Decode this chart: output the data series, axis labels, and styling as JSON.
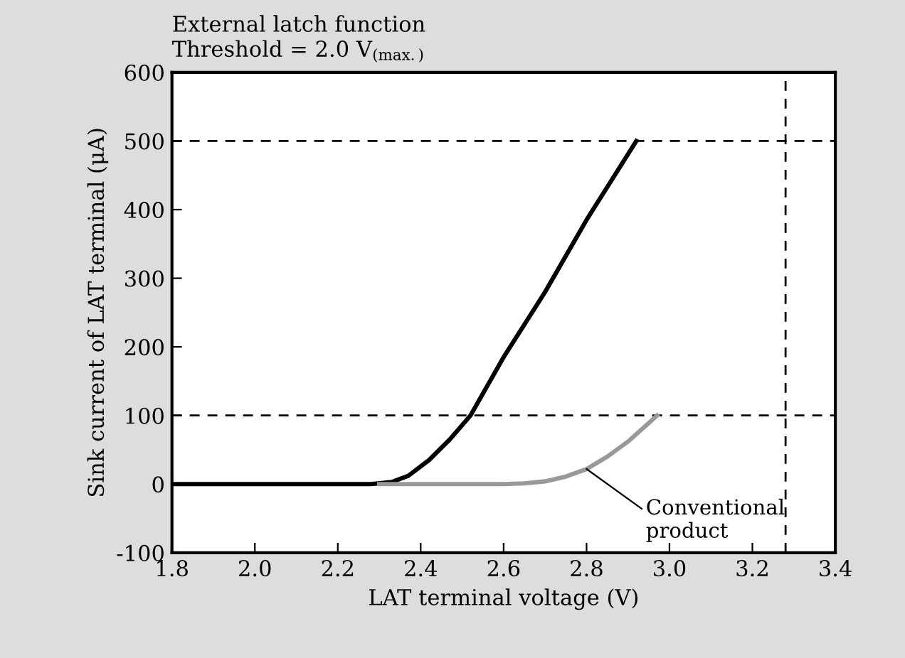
{
  "chart_data": {
    "type": "line",
    "title": "External latch function",
    "subtitle": "Threshold = 2.0 V$_{(max.)}$",
    "xlabel": "LAT terminal voltage (V)",
    "ylabel": "Sink current of LAT terminal (μA)",
    "series": [
      {
        "color": "#000000",
        "x": [
          1.8,
          2.0,
          2.2,
          2.28,
          2.33,
          2.37,
          2.42,
          2.47,
          2.52,
          2.6,
          2.7,
          2.8,
          2.92
        ],
        "values": [
          0,
          0,
          0,
          0,
          3,
          12,
          35,
          65,
          100,
          185,
          280,
          385,
          500
        ]
      },
      {
        "name": "Conventional\nproduct",
        "color": "#999999",
        "x": [
          2.3,
          2.5,
          2.6,
          2.65,
          2.7,
          2.75,
          2.8,
          2.85,
          2.9,
          2.97
        ],
        "values": [
          0,
          0,
          0,
          1,
          4,
          11,
          22,
          40,
          62,
          100
        ]
      }
    ],
    "xlim": [
      1.8,
      3.4
    ],
    "xticks": [
      1.8,
      {
        "value": 2.0,
        "label": "2.0"
      },
      2.2,
      2.4,
      2.6,
      2.8,
      {
        "value": 3.0,
        "label": "3.0"
      },
      3.2,
      3.4
    ],
    "ylim": [
      -100,
      600
    ],
    "yticks": [
      -100,
      0,
      100,
      200,
      300,
      400,
      500,
      600
    ],
    "ref_lines": [
      {
        "axis": "y",
        "value": 500,
        "line_style": "dashed"
      },
      {
        "axis": "y",
        "value": 100,
        "line_style": "dashed"
      },
      {
        "axis": "x",
        "value": 3.28,
        "line_style": "dashed"
      }
    ],
    "grid": false,
    "legend": false,
    "marker": "none",
    "line_style": "solid"
  }
}
